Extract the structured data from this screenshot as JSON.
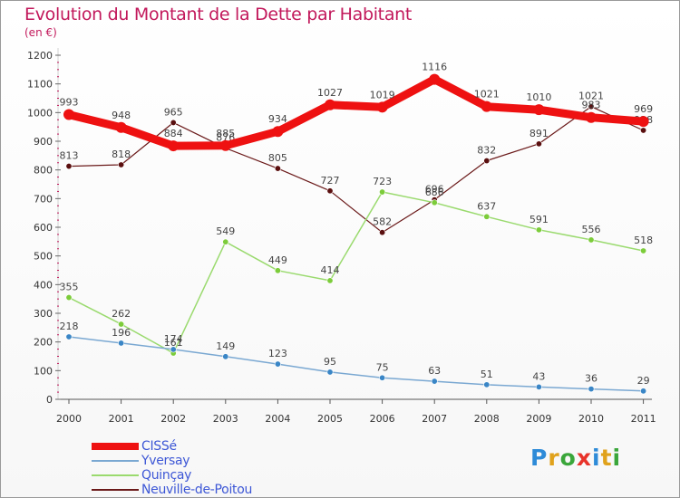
{
  "header": {
    "title": "Evolution du Montant de la Dette par Habitant",
    "subtitle": "(en €)"
  },
  "brand": {
    "letters": [
      "P",
      "r",
      "o",
      "x",
      "i",
      "t",
      "i"
    ],
    "colors": [
      "#2e8bd8",
      "#e0a21c",
      "#3aa63a",
      "#e8332a",
      "#2e8bd8",
      "#e0a21c",
      "#3aa63a"
    ]
  },
  "chart_data": {
    "type": "line",
    "title": "Evolution du Montant de la Dette par Habitant",
    "subtitle": "(en €)",
    "xlabel": "",
    "ylabel": "",
    "x": [
      "2000",
      "2001",
      "2002",
      "2003",
      "2004",
      "2005",
      "2006",
      "2007",
      "2008",
      "2009",
      "2010",
      "2011"
    ],
    "ylim": [
      0,
      1200
    ],
    "yticks": [
      0,
      100,
      200,
      300,
      400,
      500,
      600,
      700,
      800,
      900,
      1000,
      1100,
      1200
    ],
    "grid": false,
    "legend_position": "bottom-left",
    "series": [
      {
        "name": "Neuville-de-Poitou",
        "color": "#6b1a1a",
        "marker": "#5a0f0f",
        "width": 1.2,
        "values": [
          813,
          818,
          965,
          876,
          805,
          727,
          582,
          696,
          832,
          891,
          1021,
          938
        ]
      },
      {
        "name": "Quinçay",
        "color": "#9ada6e",
        "marker": "#7ccc3a",
        "width": 1.5,
        "values": [
          355,
          262,
          161,
          549,
          449,
          414,
          723,
          686,
          637,
          591,
          556,
          518
        ]
      },
      {
        "name": "Yversay",
        "color": "#7aa8d2",
        "marker": "#3a86c6",
        "width": 1.5,
        "values": [
          218,
          196,
          174,
          149,
          123,
          95,
          75,
          63,
          51,
          43,
          36,
          29
        ]
      },
      {
        "name": "CISSé",
        "color": "#ee1111",
        "marker": "#ee1111",
        "width": 9,
        "values": [
          993,
          948,
          884,
          885,
          934,
          1027,
          1019,
          1116,
          1021,
          1010,
          983,
          969
        ]
      }
    ]
  }
}
